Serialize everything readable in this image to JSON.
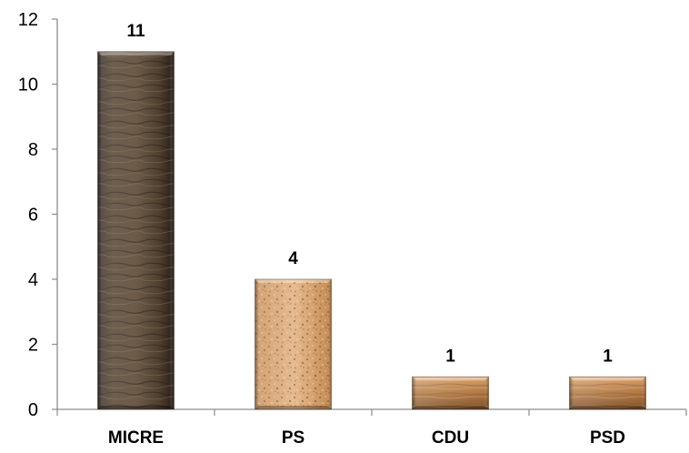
{
  "chart_data": {
    "type": "bar",
    "title": "",
    "xlabel": "",
    "ylabel": "",
    "categories": [
      "MICRE",
      "PS",
      "CDU",
      "PSD"
    ],
    "values": [
      11,
      4,
      1,
      1
    ],
    "data_labels": [
      "11",
      "4",
      "1",
      "1"
    ],
    "ylim": [
      0,
      12
    ],
    "yticks": [
      0,
      2,
      4,
      6,
      8,
      10,
      12
    ],
    "grid": false,
    "legend": "none",
    "bar_textures": [
      "dark-wood",
      "cork",
      "light-wood",
      "light-wood"
    ],
    "colors": {
      "dark_wood": "#4a3a2c",
      "cork": "#d6a675",
      "light_wood": "#b27a45",
      "axis": "#8c8c8c"
    }
  }
}
